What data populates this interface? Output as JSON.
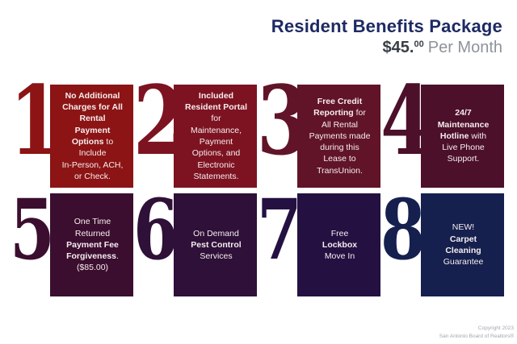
{
  "header": {
    "title": "Resident Benefits Package",
    "price_amount": "$45.",
    "price_sup": "00",
    "price_suffix": "Per Month"
  },
  "colors": {
    "title_navy": "#1D2A63",
    "price_dark": "#3A3F47",
    "price_gray": "#8E939B",
    "card_text": "#F6EDEF"
  },
  "cards": [
    {
      "number": "1",
      "color": "#8C1414",
      "text": "**No Additional\nCharges for All\nRental\nPayment\nOptions** to\nInclude\nIn-Person, ACH,\nor Check."
    },
    {
      "number": "2",
      "color": "#7D1321",
      "text": "**Included\nResident Portal**\nfor\nMaintenance,\nPayment\nOptions, and\nElectronic\nStatements."
    },
    {
      "number": "3",
      "color": "#611428",
      "text": "**Free Credit\nReporting** for\nAll Rental\nPayments made\nduring this\nLease to\nTransUnion."
    },
    {
      "number": "4",
      "color": "#4C102A",
      "text": "**24/7\nMaintenance\nHotline** with\nLive Phone\nSupport."
    },
    {
      "number": "5",
      "color": "#3B0E2F",
      "text": "One Time\nReturned\n**Payment Fee\nForgiveness**.\n($85.00)"
    },
    {
      "number": "6",
      "color": "#2E1038",
      "text": "On Demand\n**Pest Control**\nServices"
    },
    {
      "number": "7",
      "color": "#241142",
      "text": "Free\n**Lockbox**\nMove In"
    },
    {
      "number": "8",
      "color": "#15204E",
      "text": "NEW!\n**Carpet\nCleaning**\nGuarantee"
    }
  ],
  "footer": {
    "line1": "Copyright 2023",
    "line2": "San Antonio Board of Realtors®"
  }
}
